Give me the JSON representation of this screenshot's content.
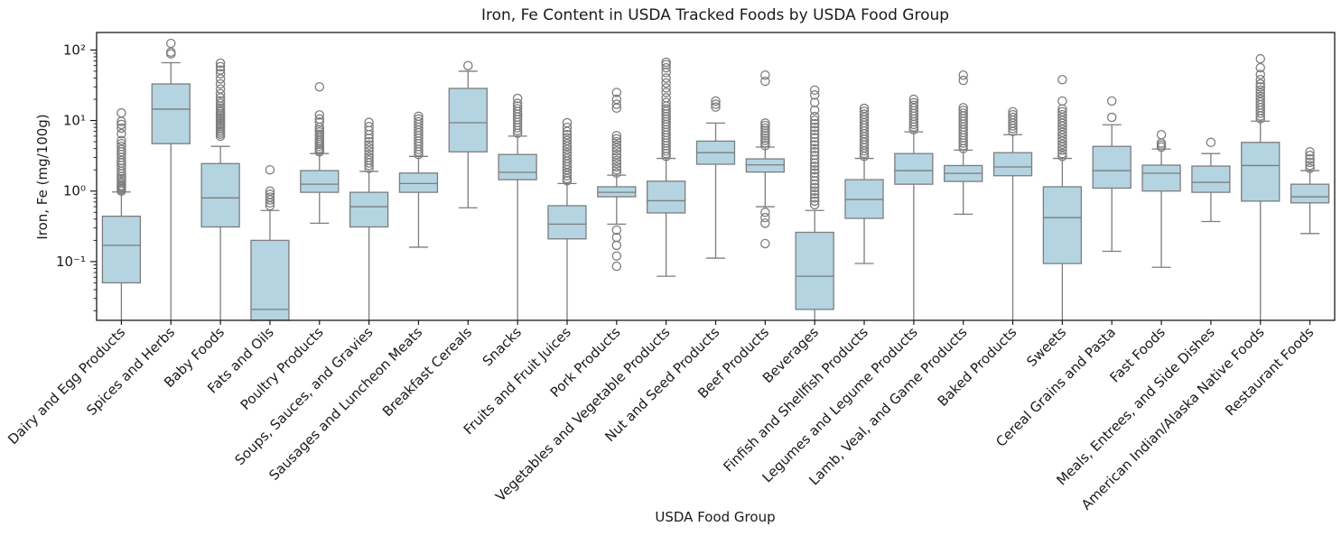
{
  "title": "Iron, Fe Content in USDA Tracked Foods by USDA Food Group",
  "xlabel": "USDA Food Group",
  "ylabel": "Iron, Fe (mg/100g)",
  "colors": {
    "box_fill": "#b4d4e1",
    "box_edge": "#7d7d7d",
    "whisker": "#7d7d7d",
    "flier_edge": "#7d7d7d",
    "spine": "#1a1a1a",
    "text": "#1a1a1a"
  },
  "chart_data": {
    "type": "boxplot",
    "title": "Iron, Fe Content in USDA Tracked Foods by USDA Food Group",
    "xlabel": "USDA Food Group",
    "ylabel": "Iron, Fe (mg/100g)",
    "log_scale_y": true,
    "ylim": [
      0.0147,
      177
    ],
    "grid": false,
    "y_major_ticks": [
      0.1,
      1,
      10,
      100
    ],
    "y_tick_labels": [
      "10⁻¹",
      "10⁰",
      "10¹",
      "10²"
    ],
    "note": "whislo/q1 value null means whisker/box extends below the visible axis (clipped at y-limit)",
    "groups": [
      {
        "label": "Dairy and Egg Products",
        "whislo": null,
        "q1": 0.05,
        "med": 0.17,
        "q3": 0.44,
        "whishi": 0.97,
        "fliers": [
          1.0,
          1.05,
          1.1,
          1.15,
          1.2,
          1.3,
          1.4,
          1.5,
          1.6,
          1.75,
          1.9,
          2.1,
          2.3,
          2.5,
          2.7,
          3.0,
          3.3,
          3.6,
          3.9,
          4.3,
          4.7,
          5.2,
          6.5,
          7.8,
          8.8,
          9.7,
          12.8
        ]
      },
      {
        "label": "Spices and Herbs",
        "whislo": null,
        "q1": 4.7,
        "med": 14.5,
        "q3": 33,
        "whishi": 66,
        "fliers": [
          88,
          93,
          124
        ]
      },
      {
        "label": "Baby Foods",
        "whislo": null,
        "q1": 0.31,
        "med": 0.8,
        "q3": 2.45,
        "whishi": 4.3,
        "fliers": [
          6.0,
          6.4,
          6.8,
          7.2,
          7.7,
          8.2,
          8.7,
          9.2,
          9.8,
          10.4,
          11,
          11.7,
          12.4,
          13.2,
          14,
          15,
          16,
          17.5,
          19,
          21,
          24,
          28,
          33,
          39,
          46,
          52,
          58,
          65
        ]
      },
      {
        "label": "Fats and Oils",
        "whislo": null,
        "q1": null,
        "med": 0.021,
        "q3": 0.2,
        "whishi": 0.53,
        "fliers": [
          0.62,
          0.68,
          0.75,
          0.82,
          0.9,
          1.0,
          2.0
        ]
      },
      {
        "label": "Poultry Products",
        "whislo": 0.35,
        "q1": 0.96,
        "med": 1.25,
        "q3": 1.95,
        "whishi": 3.4,
        "fliers": [
          3.6,
          3.8,
          4.0,
          4.3,
          4.6,
          4.9,
          5.2,
          5.6,
          6.0,
          6.4,
          6.9,
          7.4,
          8.0,
          9.5,
          10.5,
          12,
          30
        ]
      },
      {
        "label": "Soups, Sauces, and Gravies",
        "whislo": null,
        "q1": 0.31,
        "med": 0.6,
        "q3": 0.96,
        "whishi": 1.9,
        "fliers": [
          2.1,
          2.3,
          2.5,
          2.75,
          3.0,
          3.3,
          3.7,
          4.1,
          4.5,
          5.0,
          5.6,
          6.3,
          7.2,
          8.2,
          9.4
        ]
      },
      {
        "label": "Sausages and Luncheon Meats",
        "whislo": 0.16,
        "q1": 0.96,
        "med": 1.28,
        "q3": 1.8,
        "whishi": 3.1,
        "fliers": [
          3.3,
          3.6,
          3.9,
          4.3,
          4.7,
          5.1,
          5.6,
          6.1,
          6.7,
          7.3,
          8.0,
          8.8,
          9.6,
          10.5,
          11.5
        ]
      },
      {
        "label": "Breakfast Cereals",
        "whislo": 0.58,
        "q1": 3.6,
        "med": 9.3,
        "q3": 28.5,
        "whishi": 50,
        "fliers": [
          60
        ]
      },
      {
        "label": "Snacks",
        "whislo": null,
        "q1": 1.45,
        "med": 1.84,
        "q3": 3.3,
        "whishi": 6.0,
        "fliers": [
          6.6,
          7.2,
          7.9,
          8.6,
          9.4,
          10.3,
          11.2,
          12.3,
          13.4,
          14.7,
          16,
          17.5,
          20.6
        ]
      },
      {
        "label": "Fruits and Fruit Juices",
        "whislo": null,
        "q1": 0.21,
        "med": 0.34,
        "q3": 0.62,
        "whishi": 1.28,
        "fliers": [
          1.4,
          1.5,
          1.65,
          1.8,
          2.0,
          2.2,
          2.4,
          2.65,
          2.9,
          3.2,
          3.5,
          3.9,
          4.3,
          4.7,
          5.2,
          5.7,
          6.3,
          7.0,
          8.0,
          9.3
        ]
      },
      {
        "label": "Pork Products",
        "whislo": 0.34,
        "q1": 0.83,
        "med": 0.96,
        "q3": 1.15,
        "whishi": 1.68,
        "fliers": [
          0.086,
          0.12,
          0.17,
          0.22,
          0.28,
          1.8,
          2.0,
          2.2,
          2.45,
          2.7,
          3.0,
          3.3,
          3.7,
          4.1,
          4.5,
          5.0,
          5.5,
          6.1,
          15,
          17,
          20,
          25
        ]
      },
      {
        "label": "Vegetables and Vegetable Products",
        "whislo": 0.062,
        "q1": 0.49,
        "med": 0.73,
        "q3": 1.38,
        "whishi": 2.9,
        "fliers": [
          3.1,
          3.4,
          3.7,
          4.0,
          4.4,
          4.8,
          5.2,
          5.7,
          6.2,
          6.8,
          7.4,
          8.1,
          8.8,
          9.6,
          10.5,
          11.4,
          12.4,
          13.5,
          14.7,
          16,
          18,
          21,
          25,
          29,
          34,
          40,
          48,
          56,
          62,
          67
        ]
      },
      {
        "label": "Nut and Seed Products",
        "whislo": 0.112,
        "q1": 2.4,
        "med": 3.5,
        "q3": 5.1,
        "whishi": 9.2,
        "fliers": [
          15.5,
          17,
          18.9
        ]
      },
      {
        "label": "Beef Products",
        "whislo": 0.6,
        "q1": 1.86,
        "med": 2.35,
        "q3": 2.86,
        "whishi": 4.2,
        "fliers": [
          0.18,
          0.35,
          0.42,
          0.5,
          4.4,
          4.8,
          5.2,
          5.6,
          6.1,
          6.6,
          7.2,
          7.8,
          8.5,
          9.2,
          36,
          44
        ]
      },
      {
        "label": "Beverages",
        "whislo": null,
        "q1": 0.021,
        "med": 0.062,
        "q3": 0.26,
        "whishi": 0.53,
        "fliers": [
          0.64,
          0.72,
          0.8,
          0.9,
          1.0,
          1.12,
          1.25,
          1.4,
          1.6,
          1.8,
          2.0,
          2.25,
          2.5,
          2.8,
          3.2,
          3.6,
          4.0,
          4.5,
          5.0,
          5.7,
          6.4,
          7.2,
          8.0,
          9.0,
          10.1,
          11.4,
          14,
          18,
          23,
          27
        ]
      },
      {
        "label": "Finfish and Shellfish Products",
        "whislo": 0.094,
        "q1": 0.41,
        "med": 0.76,
        "q3": 1.45,
        "whishi": 2.9,
        "fliers": [
          3.1,
          3.4,
          3.7,
          4.1,
          4.5,
          4.9,
          5.4,
          5.9,
          6.5,
          7.1,
          7.8,
          8.5,
          9.3,
          10.2,
          11.2,
          12.3,
          13.5,
          14.9
        ]
      },
      {
        "label": "Legumes and Legume Products",
        "whislo": null,
        "q1": 1.25,
        "med": 1.95,
        "q3": 3.4,
        "whishi": 6.9,
        "fliers": [
          7.4,
          8.1,
          8.8,
          9.6,
          10.5,
          11.5,
          12.5,
          13.7,
          15,
          16.4,
          17.9,
          20
        ]
      },
      {
        "label": "Lamb, Veal, and Game Products",
        "whislo": 0.47,
        "q1": 1.37,
        "med": 1.78,
        "q3": 2.3,
        "whishi": 3.8,
        "fliers": [
          4.0,
          4.4,
          4.8,
          5.2,
          5.7,
          6.2,
          6.8,
          7.4,
          8.1,
          8.9,
          9.7,
          10.6,
          11.6,
          12.7,
          13.9,
          15.2,
          37,
          44
        ]
      },
      {
        "label": "Baked Products",
        "whislo": null,
        "q1": 1.65,
        "med": 2.2,
        "q3": 3.5,
        "whishi": 6.3,
        "fliers": [
          7.0,
          7.7,
          8.4,
          9.2,
          10.1,
          11.1,
          12.1,
          13.3
        ]
      },
      {
        "label": "Sweets",
        "whislo": null,
        "q1": 0.094,
        "med": 0.42,
        "q3": 1.15,
        "whishi": 2.9,
        "fliers": [
          3.1,
          3.4,
          3.8,
          4.2,
          4.6,
          5.1,
          5.6,
          6.2,
          6.8,
          7.5,
          8.3,
          9.1,
          10,
          11,
          12.1,
          13.3,
          14.6,
          18.9,
          38
        ]
      },
      {
        "label": "Cereal Grains and Pasta",
        "whislo": 0.14,
        "q1": 1.1,
        "med": 1.95,
        "q3": 4.3,
        "whishi": 8.7,
        "fliers": [
          11.1,
          18.9
        ]
      },
      {
        "label": "Fast Foods",
        "whislo": 0.083,
        "q1": 1.0,
        "med": 1.79,
        "q3": 2.33,
        "whishi": 3.95,
        "fliers": [
          4.2,
          4.5,
          4.8,
          6.3
        ]
      },
      {
        "label": "Meals, Entrees, and Side Dishes",
        "whislo": 0.37,
        "q1": 0.96,
        "med": 1.33,
        "q3": 2.26,
        "whishi": 3.4,
        "fliers": [
          4.9
        ]
      },
      {
        "label": "American Indian/Alaska Native Foods",
        "whislo": null,
        "q1": 0.72,
        "med": 2.3,
        "q3": 4.9,
        "whishi": 9.8,
        "fliers": [
          10.6,
          11.6,
          12.7,
          13.9,
          15.2,
          16.7,
          18.3,
          20,
          22,
          24.5,
          27,
          30,
          33,
          38,
          45,
          56,
          75
        ]
      },
      {
        "label": "Restaurant Foods",
        "whislo": 0.25,
        "q1": 0.68,
        "med": 0.83,
        "q3": 1.25,
        "whishi": 1.95,
        "fliers": [
          2.1,
          2.3,
          2.55,
          2.85,
          3.2,
          3.6
        ]
      }
    ]
  }
}
